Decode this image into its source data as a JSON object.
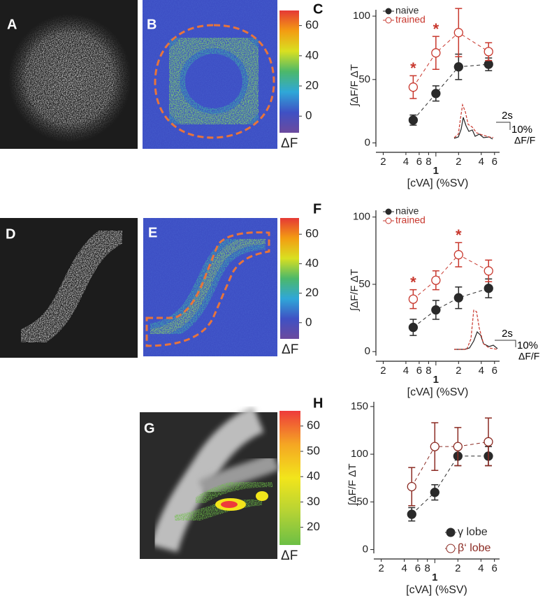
{
  "panel_labels": [
    "A",
    "B",
    "C",
    "D",
    "E",
    "F",
    "G",
    "H"
  ],
  "colorbars": [
    {
      "label": "ΔF",
      "lim": [
        -11,
        70
      ],
      "ticks": [
        0,
        20,
        40,
        60
      ],
      "colors": [
        "#6b4a9e",
        "#3f51c4",
        "#2fa7d8",
        "#4cb86a",
        "#d9e021",
        "#f39c12",
        "#e53935"
      ]
    },
    {
      "label": "ΔF",
      "lim": [
        -11,
        71
      ],
      "ticks": [
        0,
        20,
        40,
        60
      ],
      "colors": [
        "#6b4a9e",
        "#3f51c4",
        "#2fa7d8",
        "#4cb86a",
        "#d9e021",
        "#f39c12",
        "#e53935"
      ]
    },
    {
      "label": "ΔF",
      "lim": [
        13,
        66
      ],
      "ticks": [
        20,
        30,
        40,
        50,
        60
      ],
      "colors": [
        "#6cbf45",
        "#b6d334",
        "#f2e51b",
        "#f5a623",
        "#ee3b3b"
      ]
    }
  ],
  "insets": [
    {
      "time": "2s",
      "amplitude": "10%",
      "unit": "ΔF/F"
    },
    {
      "time": "2s",
      "amplitude": "10%",
      "unit": "ΔF/F"
    }
  ],
  "chart_data": [
    {
      "type": "line",
      "x_label": "[cVA] (%SV)",
      "y_label": "∫ΔF/F ΔT",
      "log_x": true,
      "x": [
        0.5,
        1,
        2,
        5
      ],
      "xlim": [
        0.16,
        7
      ],
      "xticks": [
        {
          "value": 0.2,
          "label": "2"
        },
        {
          "value": 0.4,
          "label": "4"
        },
        {
          "value": 0.6,
          "label": "6"
        },
        {
          "value": 0.8,
          "label": "8"
        },
        1,
        {
          "value": 2,
          "label": "2"
        },
        {
          "value": 4,
          "label": "4"
        },
        {
          "value": 6,
          "label": "6"
        }
      ],
      "ylim": [
        -3,
        105
      ],
      "yticks": [
        0,
        50,
        100
      ],
      "legend": "upper left",
      "series": [
        {
          "name": "naive",
          "color": "#2a2a2a",
          "marker": "filled",
          "dashed": true,
          "values": [
            18,
            39,
            60,
            62
          ],
          "errors": [
            4,
            6,
            10,
            5
          ]
        },
        {
          "name": "trained",
          "color": "#c8372d",
          "marker": "open",
          "dashed": true,
          "values": [
            44,
            71,
            87,
            72
          ],
          "errors": [
            9,
            13,
            19,
            7
          ],
          "point_labels": [
            "*",
            "*",
            null,
            null
          ]
        }
      ]
    },
    {
      "type": "line",
      "x_label": "[cVA] (%SV)",
      "y_label": "∫ΔF/F ΔT",
      "log_x": true,
      "x": [
        0.5,
        1,
        2,
        5
      ],
      "xlim": [
        0.16,
        7
      ],
      "xticks": [
        {
          "value": 0.2,
          "label": "2"
        },
        {
          "value": 0.4,
          "label": "4"
        },
        {
          "value": 0.6,
          "label": "6"
        },
        {
          "value": 0.8,
          "label": "8"
        },
        1,
        {
          "value": 2,
          "label": "2"
        },
        {
          "value": 4,
          "label": "4"
        },
        {
          "value": 6,
          "label": "6"
        }
      ],
      "ylim": [
        -3,
        105
      ],
      "yticks": [
        0,
        50,
        100
      ],
      "legend": "upper left",
      "series": [
        {
          "name": "naive",
          "color": "#2a2a2a",
          "marker": "filled",
          "dashed": true,
          "values": [
            18,
            31,
            40,
            47
          ],
          "errors": [
            6,
            7,
            8,
            7
          ]
        },
        {
          "name": "trained",
          "color": "#c8372d",
          "marker": "open",
          "dashed": true,
          "values": [
            39,
            53,
            72,
            60
          ],
          "errors": [
            7,
            7,
            9,
            8
          ],
          "point_labels": [
            "*",
            null,
            "*",
            null
          ]
        }
      ]
    },
    {
      "type": "line",
      "x_label": "[cVA] (%SV)",
      "y_label": "∫ΔF/F ΔT",
      "log_x": true,
      "x": [
        0.5,
        1,
        2,
        5
      ],
      "xlim": [
        0.16,
        7
      ],
      "xticks": [
        {
          "value": 0.2,
          "label": "2"
        },
        {
          "value": 0.4,
          "label": "4"
        },
        {
          "value": 0.6,
          "label": "6"
        },
        {
          "value": 0.8,
          "label": "8"
        },
        1,
        {
          "value": 2,
          "label": "2"
        },
        {
          "value": 4,
          "label": "4"
        },
        {
          "value": 6,
          "label": "6"
        }
      ],
      "ylim": [
        -4,
        155
      ],
      "yticks": [
        0,
        50,
        100,
        150
      ],
      "legend": "lower right",
      "series": [
        {
          "name": "γ lobe",
          "color": "#2a2a2a",
          "marker": "filled",
          "dashed": true,
          "values": [
            37,
            60,
            98,
            98
          ],
          "errors": [
            7,
            8,
            10,
            10
          ]
        },
        {
          "name": "β‘ lobe",
          "color": "#8b2a22",
          "marker": "open",
          "dashed": true,
          "values": [
            66,
            108,
            108,
            113
          ],
          "errors": [
            20,
            25,
            20,
            25
          ]
        }
      ]
    }
  ]
}
